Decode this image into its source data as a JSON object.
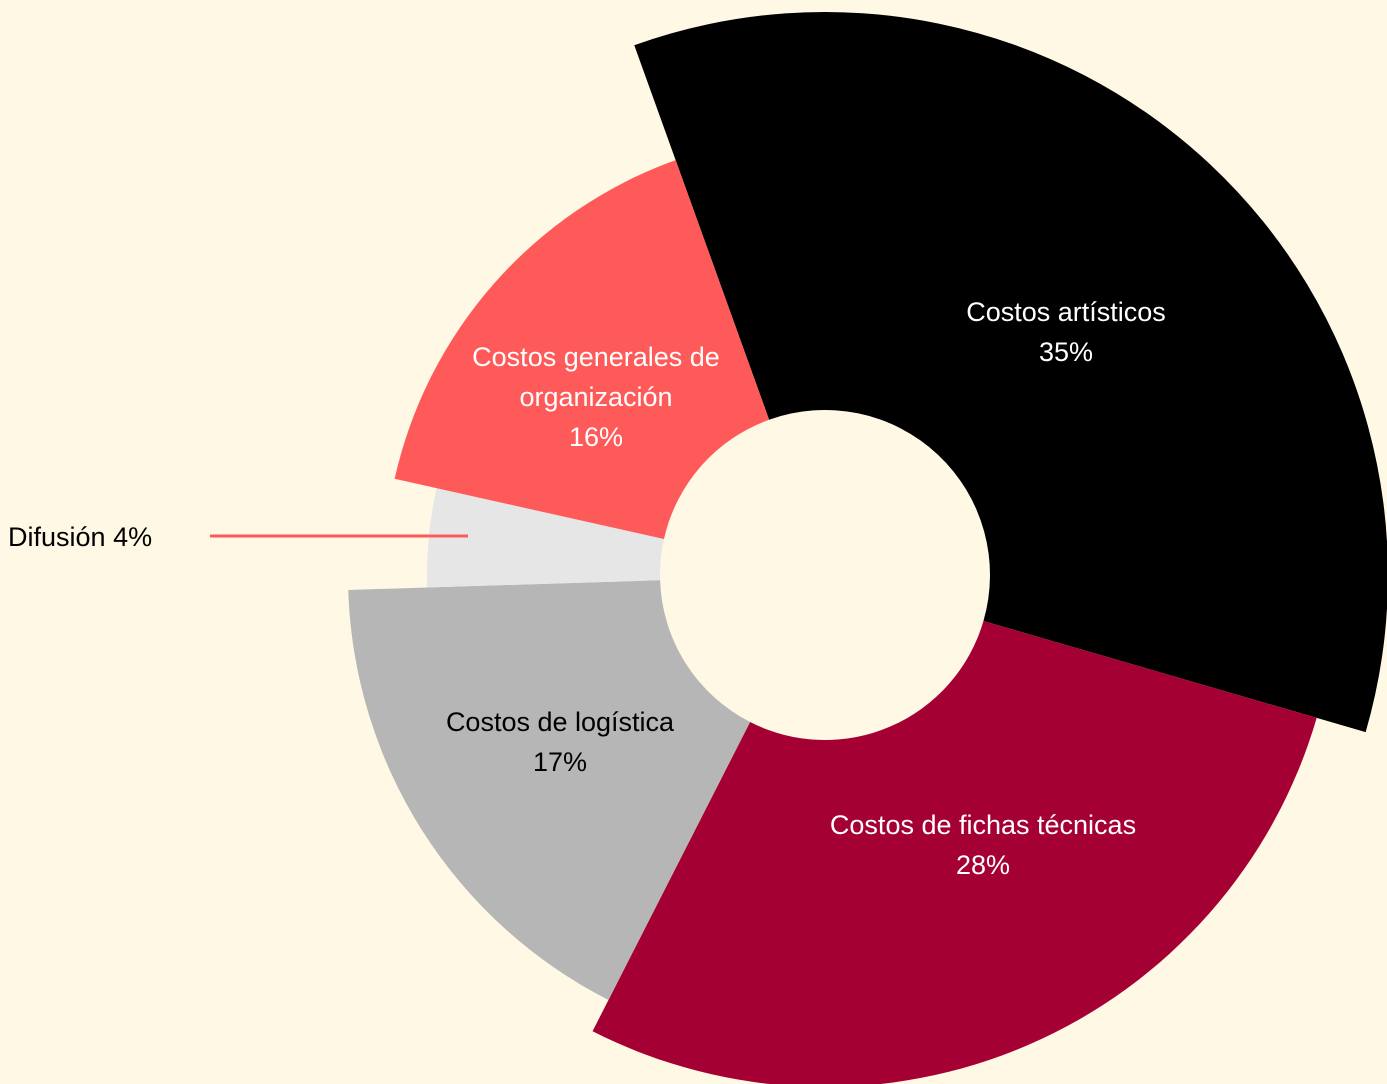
{
  "chart_data": {
    "type": "pie",
    "categories": [
      "Costos artísticos",
      "Costos de fichas técnicas",
      "Costos de logística",
      "Difusión",
      "Costos generales de organización"
    ],
    "values": [
      35,
      28,
      17,
      4,
      16
    ],
    "value_labels": [
      "35%",
      "28%",
      "17%",
      "4%",
      "16%"
    ],
    "colors": [
      "#000000",
      "#a50034",
      "#b6b6b6",
      "#e6e6e6",
      "#ff5a5a"
    ]
  }
}
